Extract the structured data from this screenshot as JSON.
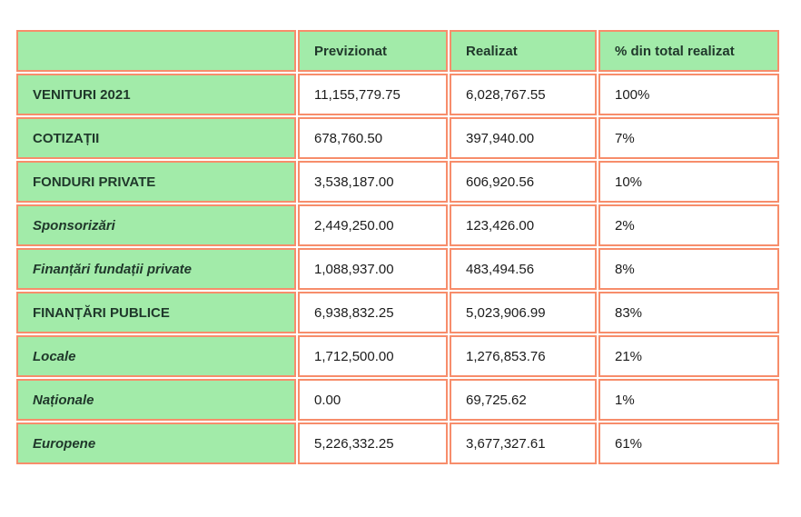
{
  "theme": {
    "cell-green": "#a2eba9",
    "border-salmon": "#f78d6b",
    "label-color": "#20382b",
    "number-color": "#1b1b1b",
    "page-bg": "#ffffff"
  },
  "chart_data": {
    "type": "table",
    "title": "",
    "columns": [
      "",
      "Previzionat",
      "Realizat",
      "% din total realizat"
    ],
    "rows": [
      {
        "label": "VENITURI 2021",
        "emphasis": "category",
        "values": [
          "11,155,779.75",
          "6,028,767.55",
          "100%"
        ]
      },
      {
        "label": "COTIZAȚII",
        "emphasis": "category",
        "values": [
          "678,760.50",
          "397,940.00",
          "7%"
        ]
      },
      {
        "label": "FONDURI PRIVATE",
        "emphasis": "category",
        "values": [
          "3,538,187.00",
          "606,920.56",
          "10%"
        ]
      },
      {
        "label": "Sponsorizări",
        "emphasis": "subcategory",
        "values": [
          "2,449,250.00",
          "123,426.00",
          "2%"
        ]
      },
      {
        "label": "Finanțări fundații private",
        "emphasis": "subcategory",
        "values": [
          "1,088,937.00",
          "483,494.56",
          "8%"
        ]
      },
      {
        "label": "FINANȚĂRI PUBLICE",
        "emphasis": "category",
        "values": [
          "6,938,832.25",
          "5,023,906.99",
          "83%"
        ]
      },
      {
        "label": "Locale",
        "emphasis": "subcategory",
        "values": [
          "1,712,500.00",
          "1,276,853.76",
          "21%"
        ]
      },
      {
        "label": "Naționale",
        "emphasis": "subcategory",
        "values": [
          "0.00",
          "69,725.62",
          "1%"
        ]
      },
      {
        "label": "Europene",
        "emphasis": "subcategory",
        "values": [
          "5,226,332.25",
          "3,677,327.61",
          "61%"
        ]
      }
    ]
  }
}
